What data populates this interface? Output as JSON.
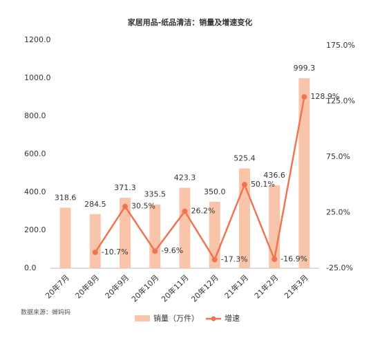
{
  "chart_data": {
    "type": "bar-line",
    "title": "家居用品-纸品清洁：销量及增速变化",
    "source": "数据来源：蝉妈妈",
    "categories": [
      "20年7月",
      "20年8月",
      "20年9月",
      "20年10月",
      "20年11月",
      "20年12月",
      "21年1月",
      "21年2月",
      "21年3月"
    ],
    "series": [
      {
        "name": "销量（万件）",
        "type": "bar",
        "color": "#f9c5aa",
        "axis": "y",
        "values": [
          318.6,
          284.5,
          371.3,
          335.5,
          423.3,
          350.0,
          525.4,
          436.6,
          999.3
        ],
        "value_labels": [
          "318.6",
          "284.5",
          "371.3",
          "335.5",
          "423.3",
          "350.0",
          "525.4",
          "436.6",
          "999.3"
        ]
      },
      {
        "name": "增速",
        "type": "line",
        "color": "#ef7452",
        "axis": "y2",
        "values": [
          null,
          -10.7,
          30.5,
          -9.6,
          26.2,
          -17.3,
          50.1,
          -16.9,
          128.9
        ],
        "value_labels": [
          null,
          "-10.7%",
          "30.5%",
          "-9.6%",
          "26.2%",
          "-17.3%",
          "50.1%",
          "-16.9%",
          "128.9%"
        ]
      }
    ],
    "ylim": [
      0,
      1200
    ],
    "yticks": [
      {
        "value": 0,
        "label": "0.0"
      },
      {
        "value": 200,
        "label": "200.0"
      },
      {
        "value": 400,
        "label": "400.0"
      },
      {
        "value": 600,
        "label": "600.0"
      },
      {
        "value": 800,
        "label": "800.0"
      },
      {
        "value": 1000,
        "label": "1000.0"
      },
      {
        "value": 1200,
        "label": "1200.0"
      }
    ],
    "y2lim": [
      -25,
      175
    ],
    "y2ticks": [
      {
        "value": -25,
        "label": "-25.0%"
      },
      {
        "value": 25,
        "label": "25.0%"
      },
      {
        "value": 75,
        "label": "75.0%"
      },
      {
        "value": 125,
        "label": "125.0%"
      },
      {
        "value": 175,
        "label": "175.0%"
      }
    ]
  }
}
